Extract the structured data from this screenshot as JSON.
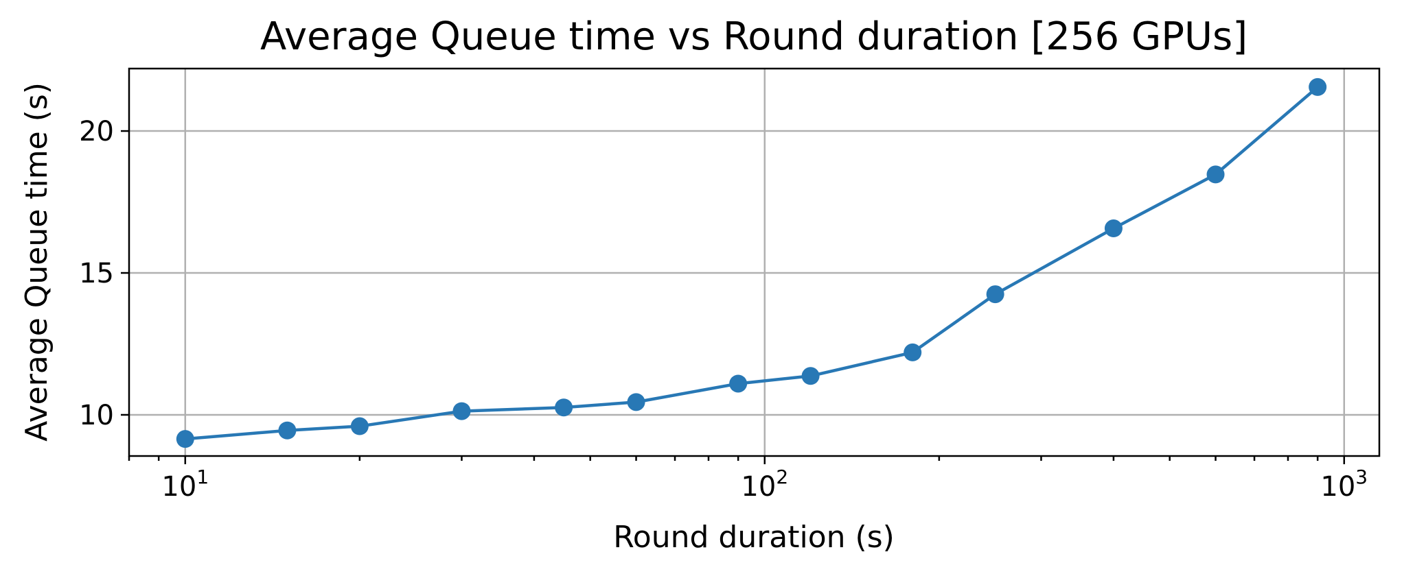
{
  "chart_data": {
    "type": "line",
    "title": "Average Queue time vs Round duration [256 GPUs]",
    "xlabel": "Round duration (s)",
    "ylabel": "Average Queue time (s)",
    "xscale": "log",
    "xlim": [
      8,
      1150
    ],
    "ylim": [
      8.55,
      22.2
    ],
    "x_ticks": [
      {
        "base": "10",
        "exp": "1",
        "value": 10
      },
      {
        "base": "10",
        "exp": "2",
        "value": 100
      },
      {
        "base": "10",
        "exp": "3",
        "value": 1000
      }
    ],
    "y_ticks": [
      {
        "label": "10",
        "value": 10
      },
      {
        "label": "15",
        "value": 15
      },
      {
        "label": "20",
        "value": 20
      }
    ],
    "grid": true,
    "color": "#2878b5",
    "series": [
      {
        "x": [
          10,
          15,
          20,
          30,
          45,
          60,
          90,
          120,
          180,
          250,
          400,
          600,
          900
        ],
        "y": [
          9.15,
          9.45,
          9.6,
          10.13,
          10.26,
          10.45,
          11.1,
          11.37,
          12.2,
          14.25,
          16.57,
          18.47,
          21.55
        ]
      }
    ]
  }
}
